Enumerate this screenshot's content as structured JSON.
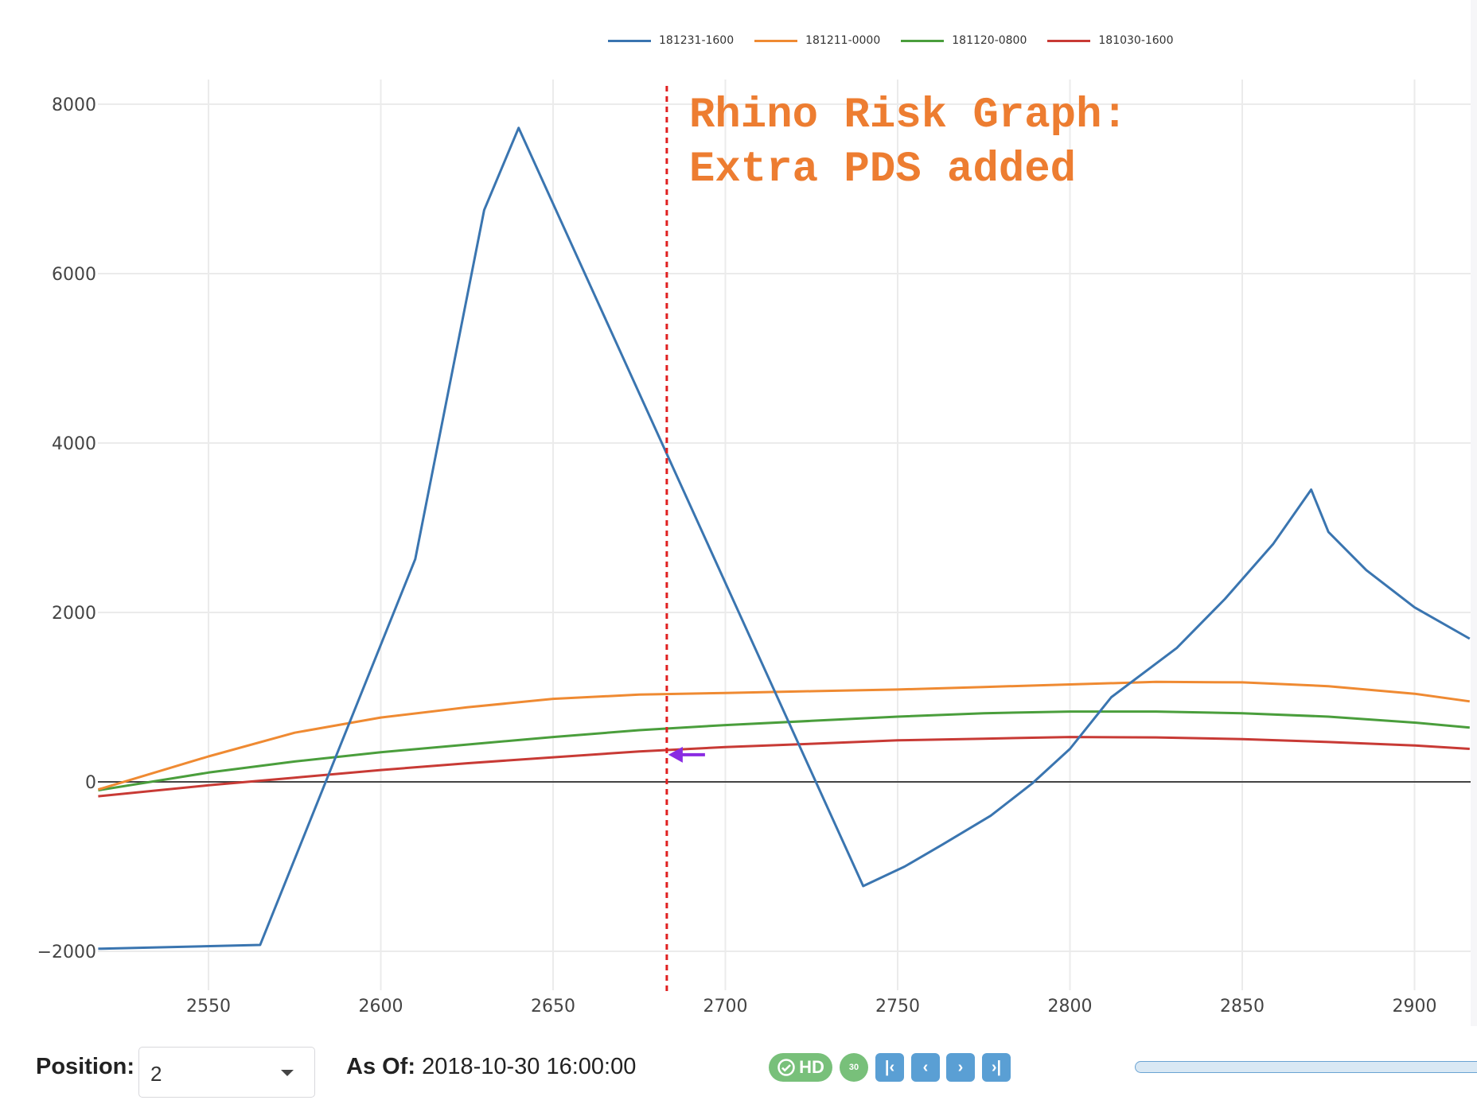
{
  "chart_data": {
    "type": "line",
    "title": "",
    "annotation": "Rhino Risk Graph:\nExtra PDS added",
    "xlabel": "",
    "ylabel": "",
    "xlim": [
      2518,
      2916
    ],
    "ylim": [
      -2250,
      8300
    ],
    "x_ticks": [
      2550,
      2600,
      2650,
      2700,
      2750,
      2800,
      2850,
      2900
    ],
    "y_ticks": [
      -2000,
      0,
      2000,
      4000,
      6000,
      8000
    ],
    "y_tick_labels": [
      "−2000",
      "0",
      "2000",
      "4000",
      "6000",
      "8000"
    ],
    "grid": true,
    "legend_position": "top",
    "vertical_marker": {
      "x": 2683,
      "color": "#e02020",
      "style": "dotted"
    },
    "marker_arrow": {
      "x": 2683,
      "y": 320,
      "color": "#8a2be2"
    },
    "series": [
      {
        "name": "181231-1600",
        "color": "#3a75b0",
        "x": [
          2518,
          2565,
          2610,
          2630,
          2640,
          2740,
          2752,
          2763,
          2777,
          2789,
          2800,
          2812,
          2831,
          2845,
          2859,
          2870,
          2875,
          2886,
          2900,
          2916
        ],
        "y": [
          -1970,
          -1925,
          2630,
          6750,
          7720,
          -1230,
          -1000,
          -740,
          -400,
          -20,
          390,
          1000,
          1580,
          2160,
          2810,
          3450,
          2950,
          2500,
          2060,
          1690
        ]
      },
      {
        "name": "181211-0000",
        "color": "#ef8a32",
        "x": [
          2518,
          2550,
          2575,
          2600,
          2625,
          2650,
          2675,
          2700,
          2725,
          2750,
          2775,
          2800,
          2825,
          2850,
          2875,
          2900,
          2916
        ],
        "y": [
          -90,
          300,
          580,
          760,
          880,
          980,
          1030,
          1050,
          1070,
          1090,
          1120,
          1150,
          1180,
          1175,
          1130,
          1040,
          950
        ]
      },
      {
        "name": "181120-0800",
        "color": "#4a9e3c",
        "x": [
          2518,
          2550,
          2575,
          2600,
          2625,
          2650,
          2675,
          2700,
          2725,
          2750,
          2775,
          2800,
          2825,
          2850,
          2875,
          2900,
          2916
        ],
        "y": [
          -100,
          110,
          240,
          350,
          440,
          530,
          610,
          670,
          720,
          770,
          810,
          830,
          830,
          810,
          770,
          700,
          640
        ]
      },
      {
        "name": "181030-1600",
        "color": "#c83a35",
        "x": [
          2518,
          2550,
          2575,
          2600,
          2625,
          2650,
          2675,
          2700,
          2725,
          2750,
          2775,
          2800,
          2825,
          2850,
          2875,
          2900,
          2916
        ],
        "y": [
          -170,
          -40,
          50,
          140,
          220,
          290,
          360,
          410,
          450,
          490,
          510,
          530,
          525,
          505,
          470,
          430,
          390
        ]
      }
    ]
  },
  "controls": {
    "position_label": "Position:",
    "position_value": "2",
    "asof_label": "As Of:",
    "asof_value": "2018-10-30 16:00:00",
    "hd_label": "HD",
    "refresh_label": "30",
    "nav": {
      "first": "⏮",
      "prev": "‹",
      "next": "›",
      "last": "⏭"
    }
  }
}
